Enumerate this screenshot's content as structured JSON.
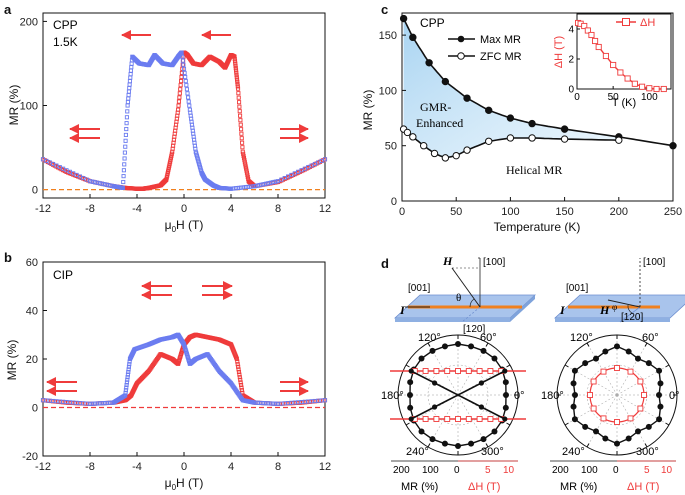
{
  "colors": {
    "red": "#ef3b3b",
    "blue": "#6b7cf0",
    "orange": "#f0801e",
    "black": "#111111",
    "fill": "#b9dcf2",
    "brown": "#d07a4a",
    "slab": "#a9c4ec"
  },
  "chart_data": [
    {
      "panel": "a",
      "type": "scatter",
      "label_lines": [
        "CPP",
        "1.5K"
      ],
      "xlabel": "μ0H (T)",
      "ylabel": "MR (%)",
      "xlim": [
        -12,
        12
      ],
      "ylim": [
        -10,
        210
      ],
      "xticks": [
        "-12",
        "-8",
        "-4",
        "0",
        "4",
        "8",
        "12"
      ],
      "yticks": [
        "0",
        "100",
        "200"
      ],
      "series": [
        {
          "name": "sweep down (red)",
          "color": "red",
          "x": [
            -12,
            -10,
            -8,
            -6,
            -5,
            -4,
            -3.5,
            -3,
            -2,
            -1.5,
            -1,
            -0.5,
            0,
            0.3,
            0.8,
            1.5,
            2.2,
            3,
            3.5,
            4,
            4.3,
            4.6,
            5,
            5.5,
            6,
            8,
            10,
            12
          ],
          "y": [
            36,
            21,
            10,
            4,
            2,
            1,
            1,
            2,
            5,
            12,
            45,
            95,
            163,
            160,
            150,
            148,
            158,
            152,
            145,
            160,
            158,
            120,
            45,
            10,
            4,
            9,
            22,
            36
          ]
        },
        {
          "name": "sweep up (blue)",
          "color": "blue",
          "x": [
            -12,
            -8,
            -6,
            -5.2,
            -4.8,
            -4.4,
            -3.8,
            -3,
            -2.5,
            -1.8,
            -1,
            -0.5,
            -0.2,
            0.5,
            1,
            1.5,
            1.8,
            2.5,
            3,
            4,
            6,
            8,
            12
          ],
          "y": [
            36,
            10,
            4,
            2,
            100,
            158,
            150,
            148,
            160,
            150,
            148,
            158,
            163,
            95,
            45,
            20,
            12,
            5,
            2,
            1,
            4,
            10,
            36
          ]
        }
      ],
      "annotations": [
        "zero baseline (orange dashed)",
        "sweep-direction arrows"
      ]
    },
    {
      "panel": "b",
      "type": "scatter",
      "label_lines": [
        "CIP"
      ],
      "xlabel": "μ0H (T)",
      "ylabel": "MR (%)",
      "xlim": [
        -12,
        12
      ],
      "ylim": [
        -20,
        60
      ],
      "xticks": [
        "-12",
        "-8",
        "-4",
        "0",
        "4",
        "8",
        "12"
      ],
      "yticks": [
        "-20",
        "0",
        "20",
        "40",
        "60"
      ],
      "series": [
        {
          "name": "sweep down (red)",
          "color": "red",
          "x": [
            -12,
            -10,
            -8,
            -6,
            -5,
            -4.5,
            -4,
            -3,
            -2,
            -1,
            -0.5,
            0,
            0.5,
            1,
            2,
            3,
            4,
            4.5,
            5,
            6,
            8,
            10,
            12
          ],
          "y": [
            3,
            2,
            1.5,
            2,
            3,
            5,
            10,
            15,
            22,
            20,
            18,
            26,
            29,
            30,
            29,
            28,
            26,
            20,
            5,
            2,
            1.5,
            2,
            3
          ]
        },
        {
          "name": "sweep up (blue)",
          "color": "blue",
          "x": [
            -12,
            -8,
            -6,
            -5,
            -4.6,
            -4.2,
            -3,
            -2,
            -1,
            -0.5,
            0,
            0.5,
            1,
            2,
            3,
            4,
            5,
            6,
            8,
            12
          ],
          "y": [
            3,
            1.5,
            2,
            5,
            20,
            24,
            26,
            28,
            29,
            30,
            26,
            18,
            20,
            22,
            15,
            10,
            3,
            2,
            1.5,
            3
          ]
        }
      ],
      "annotations": [
        "zero baseline (red dashed)",
        "sweep-direction arrows"
      ]
    },
    {
      "panel": "c",
      "type": "line",
      "label": "CPP",
      "xlabel": "Temperature (K)",
      "ylabel": "MR (%)",
      "xlim": [
        0,
        250
      ],
      "ylim": [
        0,
        170
      ],
      "xticks": [
        "0",
        "50",
        "100",
        "150",
        "200",
        "250"
      ],
      "yticks": [
        "0",
        "50",
        "100",
        "150"
      ],
      "series": [
        {
          "name": "Max MR",
          "marker": "filled",
          "x": [
            1.5,
            10,
            25,
            40,
            60,
            80,
            100,
            120,
            150,
            200,
            250
          ],
          "y": [
            165,
            148,
            125,
            108,
            93,
            82,
            75,
            70,
            65,
            58,
            50
          ]
        },
        {
          "name": "ZFC MR",
          "marker": "open",
          "x": [
            1.5,
            5,
            10,
            20,
            30,
            40,
            50,
            60,
            80,
            100,
            120,
            150,
            200
          ],
          "y": [
            65,
            62,
            58,
            50,
            43,
            39,
            41,
            46,
            54,
            57,
            57,
            56,
            55
          ]
        }
      ],
      "region_labels": {
        "upper_lines": [
          "GMR-",
          "Enhanced"
        ],
        "lower": "Helical MR"
      },
      "inset": {
        "series_name": "ΔH",
        "xlabel": "T (K)",
        "ylabel": "ΔH (T)",
        "xlim": [
          0,
          130
        ],
        "ylim": [
          0,
          5
        ],
        "xticks": [
          "0",
          "50",
          "100"
        ],
        "yticks": [
          "0",
          "2",
          "4"
        ],
        "x": [
          1.5,
          5,
          10,
          15,
          20,
          25,
          30,
          40,
          50,
          60,
          70,
          80,
          90,
          100,
          110,
          120
        ],
        "y": [
          4.4,
          4.35,
          4.2,
          3.9,
          3.6,
          3.2,
          2.8,
          2.2,
          1.6,
          1.1,
          0.7,
          0.35,
          0.15,
          0.05,
          0,
          0
        ]
      }
    },
    {
      "panel": "d",
      "type": "polar",
      "angle_labels": [
        "120°",
        "60°",
        "180°",
        "0°",
        "240°",
        "300°"
      ],
      "radial_axis": {
        "MR_label": "MR (%)",
        "MR_ticks": [
          "200",
          "100",
          "0"
        ],
        "dH_label": "ΔH (T)",
        "dH_ticks": [
          "0",
          "5",
          "10"
        ]
      },
      "schematic_labels": {
        "current": "I",
        "field": "H",
        "dir_001": "[001]",
        "dir_100": "[100]",
        "dir_120": "[120]",
        "theta": "θ",
        "phi": "φ"
      },
      "series": [
        {
          "name": "MR vs θ",
          "color": "black",
          "marker": "filled",
          "angles_deg": [
            0,
            15,
            30,
            45,
            60,
            75,
            90,
            105,
            120,
            135,
            150,
            165,
            180,
            195,
            210,
            225,
            240,
            255,
            270,
            285,
            300,
            315,
            330,
            345
          ],
          "values": [
            160,
            165,
            170,
            172,
            170,
            168,
            170,
            168,
            170,
            172,
            170,
            165,
            160,
            165,
            170,
            172,
            170,
            168,
            170,
            168,
            170,
            172,
            170,
            165
          ]
        },
        {
          "name": "ΔH vs θ",
          "color": "red",
          "marker": "open-square",
          "shape": "bowtie"
        },
        {
          "name": "MR vs φ",
          "color": "black",
          "marker": "filled",
          "angles_deg": [
            0,
            15,
            30,
            45,
            60,
            75,
            90,
            105,
            120,
            135,
            150,
            165,
            180,
            195,
            210,
            225,
            240,
            255,
            270,
            285,
            300,
            315,
            330,
            345
          ],
          "values": [
            140,
            150,
            162,
            150,
            140,
            150,
            162,
            150,
            140,
            150,
            162,
            150,
            140,
            150,
            162,
            150,
            140,
            150,
            162,
            150,
            140,
            150,
            162,
            150
          ]
        },
        {
          "name": "ΔH vs φ",
          "color": "red",
          "marker": "open-square",
          "angles_deg": [
            0,
            30,
            60,
            90,
            120,
            150,
            180,
            210,
            240,
            270,
            300,
            330
          ],
          "values": [
            5,
            5,
            5,
            5,
            5,
            5,
            5,
            5,
            5,
            5,
            5,
            5
          ]
        }
      ]
    }
  ]
}
